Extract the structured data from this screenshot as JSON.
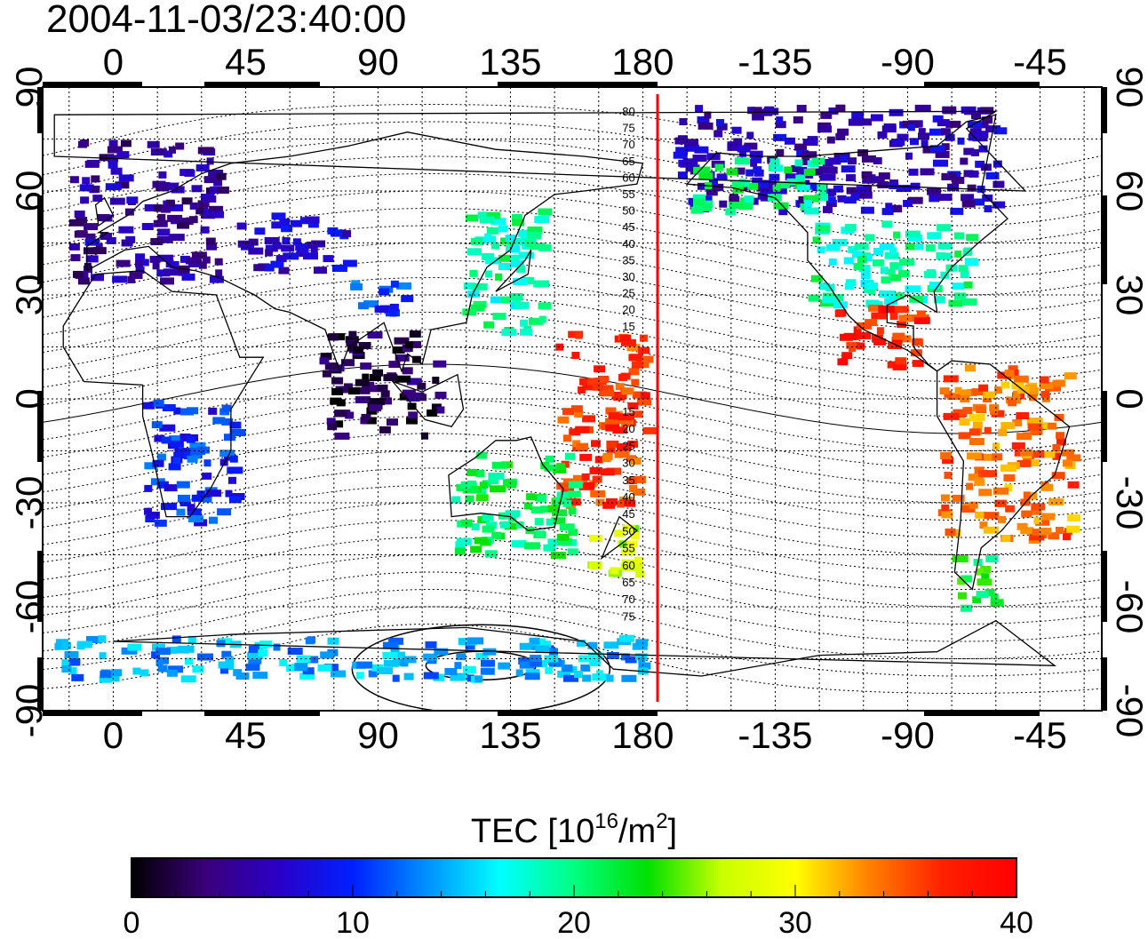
{
  "title": "2004-11-03/23:40:00",
  "map": {
    "top_lon_ticks": [
      "0",
      "45",
      "90",
      "135",
      "180",
      "-135",
      "-90",
      "-45"
    ],
    "bottom_lon_ticks": [
      "0",
      "45",
      "90",
      "135",
      "180",
      "-135",
      "-90",
      "-45"
    ],
    "lat_ticks": [
      "90",
      "60",
      "30",
      "0",
      "-30",
      "-60",
      "-90"
    ],
    "terminator_lon": -175,
    "contour_labels_north": [
      "80",
      "75",
      "70",
      "65",
      "60",
      "55",
      "50",
      "45",
      "40",
      "35",
      "30",
      "25",
      "20",
      "15"
    ],
    "contour_labels_south": [
      "15",
      "20",
      "25",
      "30",
      "35",
      "40",
      "45",
      "50",
      "55",
      "60",
      "65",
      "70",
      "75"
    ],
    "lon_range": [
      -24,
      336
    ],
    "lat_range": [
      -90,
      90
    ],
    "grid": true
  },
  "colorbar": {
    "title_main": "TEC  [10",
    "title_sup1": "16",
    "title_mid": "/m",
    "title_sup2": "2",
    "title_end": "]",
    "tick_labels": [
      "0",
      "10",
      "20",
      "30",
      "40"
    ],
    "min": 0,
    "max": 40,
    "colors": [
      "#000000",
      "#3a007a",
      "#2a00c8",
      "#0020ff",
      "#0090ff",
      "#00ffff",
      "#00ff80",
      "#00e000",
      "#c8ff00",
      "#ffff00",
      "#ff8000",
      "#ff2000",
      "#ff0000"
    ]
  },
  "chart_data": {
    "type": "heatmap",
    "title": "2004-11-03/23:40:00",
    "value_label": "TEC  [10^16/m^2]",
    "value_range": [
      0,
      40
    ],
    "x_axis": "longitude",
    "y_axis": "latitude",
    "regions": [
      {
        "lon": [
          -15,
          35
        ],
        "lat": [
          35,
          75
        ],
        "tec": 5
      },
      {
        "lon": [
          42,
          80
        ],
        "lat": [
          38,
          55
        ],
        "tec": 7
      },
      {
        "lon": [
          80,
          100
        ],
        "lat": [
          25,
          35
        ],
        "tec": 11
      },
      {
        "lon": [
          70,
          110
        ],
        "lat": [
          -10,
          20
        ],
        "tec": 2
      },
      {
        "lon": [
          118,
          145
        ],
        "lat": [
          20,
          55
        ],
        "tec": 19
      },
      {
        "lon": [
          150,
          180
        ],
        "lat": [
          -30,
          20
        ],
        "tec": 36
      },
      {
        "lon": [
          160,
          180
        ],
        "lat": [
          -50,
          -35
        ],
        "tec": 27
      },
      {
        "lon": [
          115,
          155
        ],
        "lat": [
          -45,
          -15
        ],
        "tec": 21
      },
      {
        "lon": [
          -170,
          -60
        ],
        "lat": [
          55,
          85
        ],
        "tec": 6
      },
      {
        "lon": [
          -165,
          -120
        ],
        "lat": [
          55,
          70
        ],
        "tec": 20
      },
      {
        "lon": [
          -125,
          -70
        ],
        "lat": [
          28,
          52
        ],
        "tec": 19
      },
      {
        "lon": [
          -115,
          -85
        ],
        "lat": [
          10,
          28
        ],
        "tec": 37
      },
      {
        "lon": [
          -80,
          -35
        ],
        "lat": [
          -40,
          10
        ],
        "tec": 34
      },
      {
        "lon": [
          -75,
          -60
        ],
        "lat": [
          -60,
          -45
        ],
        "tec": 22
      },
      {
        "lon": [
          10,
          40
        ],
        "lat": [
          -35,
          0
        ],
        "tec": 10
      },
      {
        "lon": [
          -20,
          180
        ],
        "lat": [
          -80,
          -68
        ],
        "tec": 14
      }
    ]
  }
}
